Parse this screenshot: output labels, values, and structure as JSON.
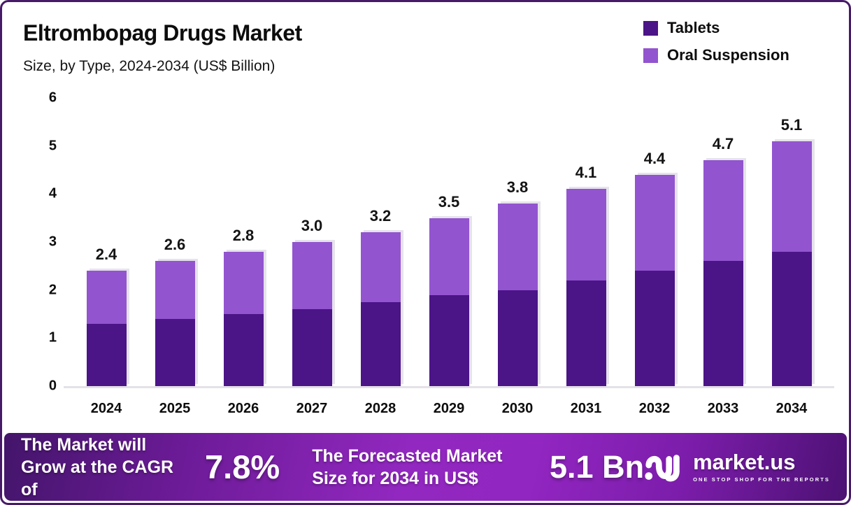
{
  "frame": {
    "border_color": "#471a68",
    "background": "#ffffff"
  },
  "header": {
    "title": "Eltrombopag Drugs Market",
    "subtitle": "Size, by Type, 2024-2034 (US$ Billion)"
  },
  "legend": {
    "items": [
      {
        "label": "Tablets",
        "color": "#4b1487"
      },
      {
        "label": "Oral Suspension",
        "color": "#9254cf"
      }
    ]
  },
  "chart_data": {
    "type": "bar",
    "stacked": true,
    "title": "Eltrombopag Drugs Market",
    "subtitle": "Size, by Type, 2024-2034 (US$ Billion)",
    "categories": [
      "2024",
      "2025",
      "2026",
      "2027",
      "2028",
      "2029",
      "2030",
      "2031",
      "2032",
      "2033",
      "2034"
    ],
    "series": [
      {
        "name": "Tablets",
        "color": "#4b1487",
        "values": [
          1.3,
          1.4,
          1.5,
          1.6,
          1.75,
          1.9,
          2.0,
          2.2,
          2.4,
          2.6,
          2.8
        ]
      },
      {
        "name": "Oral Suspension",
        "color": "#9254cf",
        "values": [
          1.1,
          1.2,
          1.3,
          1.4,
          1.45,
          1.6,
          1.8,
          1.9,
          2.0,
          2.1,
          2.3
        ]
      }
    ],
    "totals": [
      2.4,
      2.6,
      2.8,
      3.0,
      3.2,
      3.5,
      3.8,
      4.1,
      4.4,
      4.7,
      5.1
    ],
    "total_labels": [
      "2.4",
      "2.6",
      "2.8",
      "3.0",
      "3.2",
      "3.5",
      "3.8",
      "4.1",
      "4.4",
      "4.7",
      "5.1"
    ],
    "xlabel": "",
    "ylabel": "",
    "ylim": [
      0,
      6
    ],
    "yticks": [
      0,
      1,
      2,
      3,
      4,
      5,
      6
    ],
    "grid": false,
    "legend_position": "top-right"
  },
  "footer": {
    "cagr_label": "The Market will Grow at the CAGR of",
    "cagr_value": "7.8%",
    "forecast_label": "The Forecasted Market Size for 2034 in US$",
    "forecast_value": "5.1 Bn",
    "brand": {
      "name": "market.us",
      "tagline": "ONE STOP SHOP FOR THE REPORTS"
    }
  }
}
